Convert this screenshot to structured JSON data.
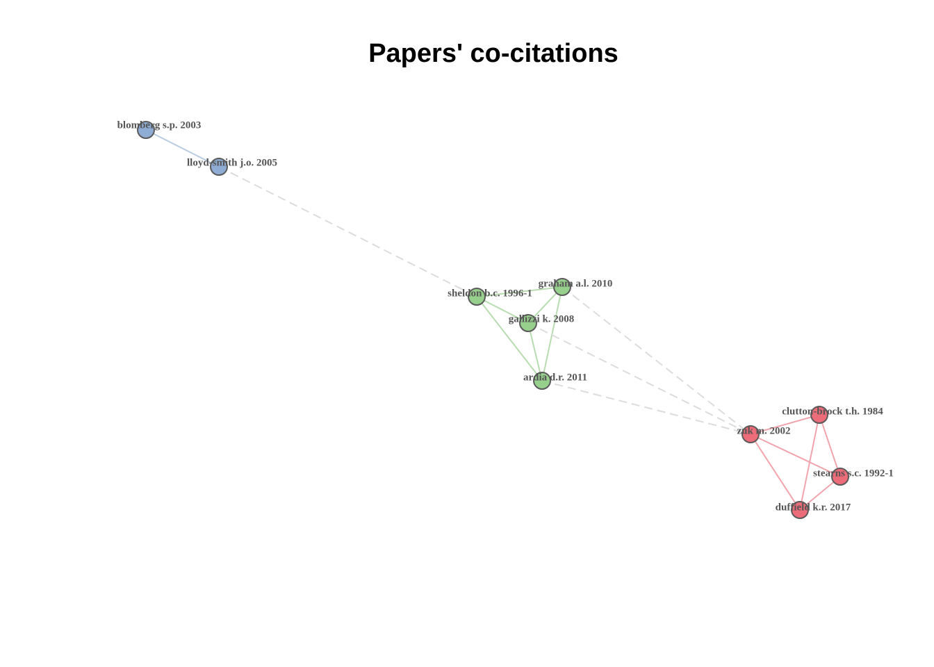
{
  "title": "Papers' co-citations",
  "clusters": [
    {
      "id": "blue",
      "color": "#8fadd4",
      "edge_color": "#b9cbe3"
    },
    {
      "id": "green",
      "color": "#97cf8d",
      "edge_color": "#b7dcaf"
    },
    {
      "id": "red",
      "color": "#ec6c79",
      "edge_color": "#f2a4ac"
    }
  ],
  "inter_cluster_edge_color": "#dcdcdc",
  "node_outline_color": "#5a5a5a",
  "nodes": [
    {
      "id": "blomberg",
      "label": "blomberg s.p. 2003",
      "cluster": "blue"
    },
    {
      "id": "lloyd",
      "label": "lloyd-smith j.o. 2005",
      "cluster": "blue"
    },
    {
      "id": "sheldon",
      "label": "sheldon b.c. 1996-1",
      "cluster": "green"
    },
    {
      "id": "graham",
      "label": "graham a.l. 2010",
      "cluster": "green"
    },
    {
      "id": "gallizzi",
      "label": "gallizzi k. 2008",
      "cluster": "green"
    },
    {
      "id": "ardia",
      "label": "ardia d.r. 2011",
      "cluster": "green"
    },
    {
      "id": "clutton",
      "label": "clutton-brock t.h. 1984",
      "cluster": "red"
    },
    {
      "id": "zuk",
      "label": "zuk m. 2002",
      "cluster": "red"
    },
    {
      "id": "stearns",
      "label": "stearns s.c. 1992-1",
      "cluster": "red"
    },
    {
      "id": "duffield",
      "label": "duffield k.r. 2017",
      "cluster": "red"
    }
  ],
  "edges": [
    {
      "source": "blomberg",
      "target": "lloyd",
      "type": "intra"
    },
    {
      "source": "lloyd",
      "target": "sheldon",
      "type": "inter"
    },
    {
      "source": "sheldon",
      "target": "graham",
      "type": "intra"
    },
    {
      "source": "sheldon",
      "target": "gallizzi",
      "type": "intra"
    },
    {
      "source": "sheldon",
      "target": "ardia",
      "type": "intra"
    },
    {
      "source": "graham",
      "target": "gallizzi",
      "type": "intra"
    },
    {
      "source": "graham",
      "target": "ardia",
      "type": "intra"
    },
    {
      "source": "gallizzi",
      "target": "ardia",
      "type": "intra"
    },
    {
      "source": "graham",
      "target": "zuk",
      "type": "inter"
    },
    {
      "source": "gallizzi",
      "target": "zuk",
      "type": "inter"
    },
    {
      "source": "ardia",
      "target": "zuk",
      "type": "inter"
    },
    {
      "source": "zuk",
      "target": "clutton",
      "type": "intra"
    },
    {
      "source": "zuk",
      "target": "stearns",
      "type": "intra"
    },
    {
      "source": "zuk",
      "target": "duffield",
      "type": "intra"
    },
    {
      "source": "clutton",
      "target": "stearns",
      "type": "intra"
    },
    {
      "source": "clutton",
      "target": "duffield",
      "type": "intra"
    },
    {
      "source": "stearns",
      "target": "duffield",
      "type": "intra"
    }
  ]
}
